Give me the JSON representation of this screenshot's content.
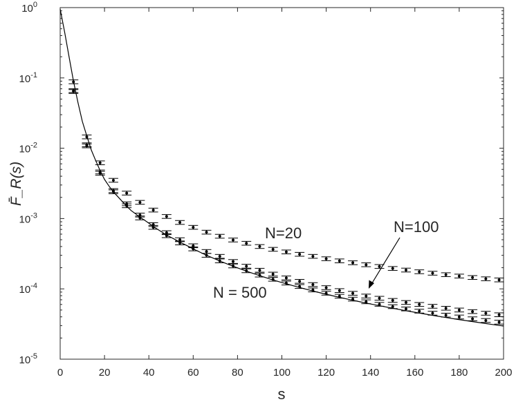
{
  "chart_data": {
    "type": "scatter",
    "xlabel": "s",
    "ylabel": "F̄_R(s)",
    "xlim": [
      0,
      200
    ],
    "ylim_exponents": [
      -5,
      0
    ],
    "y_scale": "log",
    "grid": false,
    "x_ticks": [
      "0",
      "20",
      "40",
      "60",
      "80",
      "100",
      "120",
      "140",
      "160",
      "180",
      "200"
    ],
    "y_ticks": [
      {
        "base": "10",
        "exp": "-5"
      },
      {
        "base": "10",
        "exp": "-4"
      },
      {
        "base": "10",
        "exp": "-3"
      },
      {
        "base": "10",
        "exp": "-2"
      },
      {
        "base": "10",
        "exp": "-1"
      },
      {
        "base": "10",
        "exp": "0"
      }
    ],
    "annotations": [
      {
        "text": "N=20"
      },
      {
        "text": "N=100"
      },
      {
        "text": "N = 500"
      }
    ],
    "series": [
      {
        "x": [
          6,
          12,
          18,
          24,
          30,
          36,
          42,
          48,
          54,
          60,
          66,
          72,
          78,
          84,
          90,
          96,
          102,
          108,
          114,
          120,
          126,
          132,
          138,
          144,
          150,
          156,
          162,
          168,
          174,
          180,
          186,
          192,
          198
        ],
        "y": [
          0.088,
          0.0145,
          0.0062,
          0.0035,
          0.0023,
          0.0017,
          0.00132,
          0.00107,
          0.00088,
          0.00075,
          0.00064,
          0.00056,
          0.000495,
          0.000445,
          0.0004,
          0.000365,
          0.000335,
          0.00031,
          0.00029,
          0.000268,
          0.00025,
          0.000235,
          0.00022,
          0.000208,
          0.000195,
          0.000185,
          0.000175,
          0.000167,
          0.000159,
          0.000152,
          0.000145,
          0.000139,
          0.000134
        ]
      },
      {
        "x": [
          6,
          12,
          18,
          24,
          30,
          36,
          42,
          48,
          54,
          60,
          66,
          72,
          78,
          84,
          90,
          96,
          102,
          108,
          114,
          120,
          126,
          132,
          138,
          144,
          150,
          156,
          162,
          168,
          174,
          180,
          186,
          192,
          198
        ],
        "y": [
          0.066,
          0.0112,
          0.0046,
          0.0025,
          0.00162,
          0.00112,
          0.00082,
          0.00063,
          0.0005,
          0.00041,
          0.00034,
          0.00029,
          0.000245,
          0.00021,
          0.000184,
          0.000162,
          0.000143,
          0.000128,
          0.000115,
          0.000104,
          9.45e-05,
          8.65e-05,
          7.9e-05,
          7.35e-05,
          6.85e-05,
          6.4e-05,
          6e-05,
          5.65e-05,
          5.3e-05,
          5e-05,
          4.75e-05,
          4.5e-05,
          4.28e-05
        ]
      },
      {
        "x": [
          6,
          12,
          18,
          24,
          30,
          36,
          42,
          48,
          54,
          60,
          66,
          72,
          78,
          84,
          90,
          96,
          102,
          108,
          114,
          120,
          126,
          132,
          138,
          144,
          150,
          156,
          162,
          168,
          174,
          180,
          186,
          192,
          198
        ],
        "y": [
          0.064,
          0.0108,
          0.0044,
          0.0024,
          0.00152,
          0.00102,
          0.00075,
          0.00057,
          0.00045,
          0.00037,
          0.0003,
          0.00025,
          0.000212,
          0.000181,
          0.000157,
          0.000137,
          0.000121,
          0.000108,
          9.65e-05,
          8.68e-05,
          7.85e-05,
          7.15e-05,
          6.55e-05,
          6.03e-05,
          5.58e-05,
          5.18e-05,
          4.82e-05,
          4.51e-05,
          4.23e-05,
          3.98e-05,
          3.75e-05,
          3.55e-05,
          3.36e-05
        ]
      },
      {
        "x": [
          0,
          2,
          4,
          6,
          8,
          10,
          12,
          14,
          16,
          18,
          20,
          22,
          24,
          26,
          28,
          30,
          32,
          34,
          36,
          38,
          40,
          42,
          44,
          46,
          48,
          50,
          52,
          54,
          56,
          58,
          60,
          62,
          64,
          66,
          68,
          70,
          72,
          74,
          76,
          78,
          80,
          85,
          90,
          95,
          100,
          105,
          110,
          115,
          120,
          125,
          130,
          135,
          140,
          145,
          150,
          155,
          160,
          165,
          170,
          175,
          180,
          185,
          190,
          195,
          200
        ],
        "y": [
          0.95,
          0.45,
          0.2,
          0.09,
          0.045,
          0.024,
          0.015,
          0.0095,
          0.0067,
          0.0048,
          0.0036,
          0.0029,
          0.0024,
          0.00205,
          0.00175,
          0.0015,
          0.0013,
          0.00117,
          0.00104,
          0.00095,
          0.00086,
          0.00077,
          0.0007,
          0.00064,
          0.00058,
          0.00054,
          0.0005,
          0.00046,
          0.00043,
          0.0004,
          0.00037,
          0.000345,
          0.000322,
          0.0003,
          0.000282,
          0.000265,
          0.000249,
          0.000235,
          0.000222,
          0.00021,
          0.000199,
          0.000174,
          0.000154,
          0.000137,
          0.000123,
          0.000111,
          0.0001005,
          9.15e-05,
          8.38e-05,
          7.7e-05,
          7.1e-05,
          6.57e-05,
          6.1e-05,
          5.68e-05,
          5.3e-05,
          4.95e-05,
          4.64e-05,
          4.36e-05,
          4.1e-05,
          3.87e-05,
          3.65e-05,
          3.46e-05,
          3.28e-05,
          3.11e-05,
          2.96e-05
        ]
      }
    ]
  }
}
